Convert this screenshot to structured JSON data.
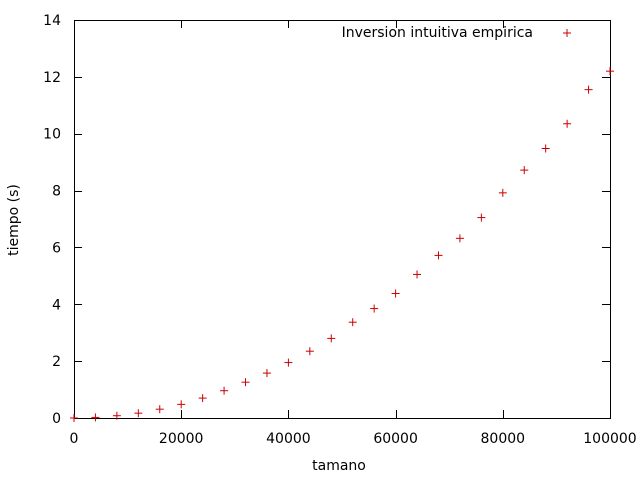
{
  "chart_data": {
    "type": "scatter",
    "title": "",
    "xlabel": "tamano",
    "ylabel": "tiempo (s)",
    "xlim": [
      0,
      100000
    ],
    "ylim": [
      0,
      14
    ],
    "x_ticks": [
      0,
      20000,
      40000,
      60000,
      80000,
      100000
    ],
    "y_ticks": [
      0,
      2,
      4,
      6,
      8,
      10,
      12,
      14
    ],
    "x_tick_labels": [
      "0",
      "20000",
      "40000",
      "60000",
      "80000",
      "100000"
    ],
    "y_tick_labels": [
      "0",
      "2",
      "4",
      "6",
      "8",
      "10",
      "12",
      "14"
    ],
    "grid": false,
    "legend_position": "top-right",
    "series": [
      {
        "name": "Inversion intuitiva empirica",
        "color": "#cc0000",
        "marker": "plus",
        "points": [
          {
            "x": 0,
            "y": 0.0
          },
          {
            "x": 4000,
            "y": 0.02
          },
          {
            "x": 8000,
            "y": 0.08
          },
          {
            "x": 12000,
            "y": 0.17
          },
          {
            "x": 16000,
            "y": 0.31
          },
          {
            "x": 20000,
            "y": 0.48
          },
          {
            "x": 24000,
            "y": 0.7
          },
          {
            "x": 28000,
            "y": 0.96
          },
          {
            "x": 32000,
            "y": 1.26
          },
          {
            "x": 36000,
            "y": 1.58
          },
          {
            "x": 40000,
            "y": 1.95
          },
          {
            "x": 44000,
            "y": 2.35
          },
          {
            "x": 48000,
            "y": 2.8
          },
          {
            "x": 52000,
            "y": 3.37
          },
          {
            "x": 56000,
            "y": 3.85
          },
          {
            "x": 60000,
            "y": 4.38
          },
          {
            "x": 64000,
            "y": 5.05
          },
          {
            "x": 68000,
            "y": 5.72
          },
          {
            "x": 72000,
            "y": 6.32
          },
          {
            "x": 76000,
            "y": 7.05
          },
          {
            "x": 80000,
            "y": 7.92
          },
          {
            "x": 84000,
            "y": 8.72
          },
          {
            "x": 88000,
            "y": 9.48
          },
          {
            "x": 92000,
            "y": 10.35
          },
          {
            "x": 96000,
            "y": 11.55
          },
          {
            "x": 100000,
            "y": 12.2
          }
        ]
      }
    ]
  }
}
